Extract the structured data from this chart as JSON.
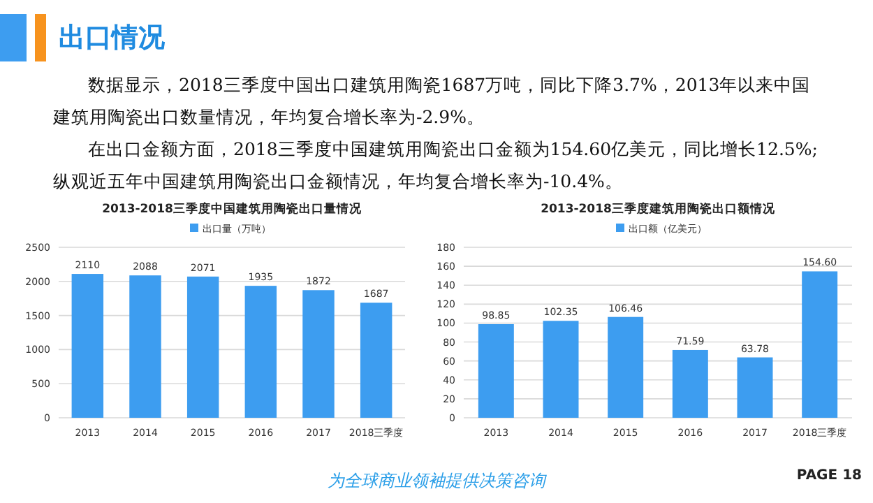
{
  "chart_data": [
    {
      "type": "other",
      "title": "出口情况",
      "annotations": [
        "数据显示，2018三季度中国出口建筑用陶瓷1687万吨，同比下降3.7%，2013年以来中国建筑用陶瓷出口数量情况，年均复合增长率为-2.9%。",
        "在出口金额方面，2018三季度中国建筑用陶瓷出口金额为154.60亿美元，同比增长12.5%;纵观近五年中国建筑用陶瓷出口金额情况，年均复合增长率为-10.4%。",
        "为全球商业领袖提供决策咨询",
        "PAGE 18"
      ]
    },
    {
      "type": "bar",
      "title": "2013-2018三季度中国建筑用陶瓷出口量情况",
      "categories": [
        "2013",
        "2014",
        "2015",
        "2016",
        "2017",
        "2018三季度"
      ],
      "series": [
        {
          "name": "出口量（万吨）",
          "color": "#3d9df0",
          "values": [
            2110,
            2088,
            2071,
            1935,
            1872,
            1687
          ]
        }
      ],
      "ylim": [
        0,
        2500
      ],
      "yticks": [
        0,
        500,
        1000,
        1500,
        2000,
        2500
      ],
      "grid": "y",
      "legend": "top",
      "data_labels": true
    },
    {
      "type": "bar",
      "title": "2013-2018三季度建筑用陶瓷出口额情况",
      "categories": [
        "2013",
        "2014",
        "2015",
        "2016",
        "2017",
        "2018三季度"
      ],
      "series": [
        {
          "name": "出口额（亿美元）",
          "color": "#3d9df0",
          "values": [
            98.85,
            102.35,
            106.46,
            71.59,
            63.78,
            154.6
          ],
          "value_labels": [
            "98.85",
            "102.35",
            "106.46",
            "71.59",
            "63.78",
            "154.60"
          ]
        }
      ],
      "ylim": [
        0,
        180
      ],
      "yticks": [
        0,
        20,
        40,
        60,
        80,
        100,
        120,
        140,
        160,
        180
      ],
      "grid": "y",
      "legend": "top",
      "data_labels": true
    }
  ]
}
